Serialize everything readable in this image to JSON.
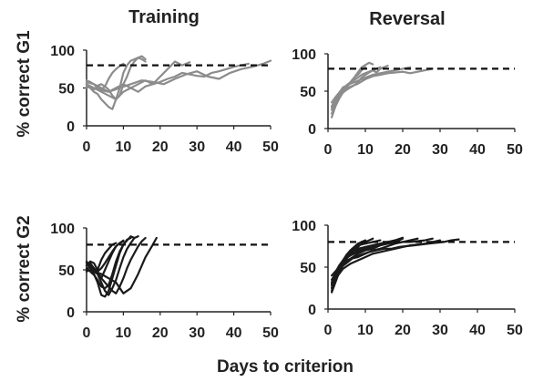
{
  "figure": {
    "column_titles": [
      "Training",
      "Reversal"
    ],
    "row_ylabels": [
      "% correct G1",
      "% correct G2"
    ],
    "shared_xlabel": "Days to criterion"
  },
  "chart_data": [
    {
      "id": "g1-training",
      "type": "line",
      "title": "Training",
      "ylabel": "% correct G1",
      "xlim": [
        0,
        50
      ],
      "ylim": [
        0,
        100
      ],
      "xticks": [
        0,
        10,
        20,
        30,
        40,
        50
      ],
      "yticks": [
        0,
        50,
        100
      ],
      "criterion": 80,
      "color": "#8c8c8c",
      "series": [
        {
          "x": [
            0,
            1,
            2,
            3,
            4,
            5,
            6,
            7,
            8,
            9,
            10
          ],
          "y": [
            60,
            58,
            55,
            50,
            48,
            52,
            62,
            70,
            75,
            79,
            82
          ]
        },
        {
          "x": [
            0,
            1,
            2,
            3,
            4,
            5,
            6,
            7,
            8,
            9,
            10,
            11,
            12,
            13,
            14,
            15,
            16
          ],
          "y": [
            50,
            52,
            48,
            53,
            55,
            52,
            48,
            40,
            35,
            50,
            70,
            80,
            86,
            88,
            90,
            88,
            85
          ]
        },
        {
          "x": [
            0,
            1,
            2,
            3,
            4,
            5,
            6,
            7,
            8,
            9,
            10,
            11,
            12,
            13,
            14,
            15,
            16
          ],
          "y": [
            55,
            50,
            45,
            42,
            35,
            30,
            25,
            22,
            35,
            40,
            55,
            65,
            78,
            85,
            90,
            92,
            88
          ]
        },
        {
          "x": [
            0,
            2,
            4,
            6,
            8,
            10,
            12,
            14,
            16,
            18,
            20,
            22,
            24,
            26,
            28
          ],
          "y": [
            58,
            55,
            50,
            45,
            50,
            55,
            50,
            45,
            52,
            55,
            65,
            75,
            85,
            80,
            84
          ]
        },
        {
          "x": [
            0,
            3,
            6,
            9,
            12,
            15,
            18,
            21,
            24,
            27,
            30,
            33,
            36,
            39,
            42,
            45,
            48,
            50
          ],
          "y": [
            52,
            48,
            45,
            50,
            55,
            60,
            58,
            55,
            62,
            68,
            72,
            65,
            62,
            70,
            75,
            78,
            82,
            86
          ]
        },
        {
          "x": [
            0,
            2,
            4,
            6,
            8,
            10,
            12,
            14,
            16,
            18,
            20,
            22,
            24,
            26,
            28,
            30,
            32,
            34,
            36,
            38,
            40,
            42,
            44
          ],
          "y": [
            55,
            50,
            45,
            40,
            35,
            45,
            50,
            55,
            60,
            55,
            58,
            62,
            65,
            70,
            68,
            66,
            65,
            70,
            72,
            75,
            78,
            80,
            82
          ]
        }
      ]
    },
    {
      "id": "g1-reversal",
      "type": "line",
      "title": "Reversal",
      "ylabel": "% correct G1",
      "xlim": [
        0,
        50
      ],
      "ylim": [
        0,
        100
      ],
      "xticks": [
        0,
        10,
        20,
        30,
        40,
        50
      ],
      "yticks": [
        0,
        50,
        100
      ],
      "criterion": 80,
      "color": "#8c8c8c",
      "series": [
        {
          "x": [
            1,
            2,
            3,
            4,
            5,
            6,
            7,
            8,
            9,
            10
          ],
          "y": [
            15,
            30,
            42,
            50,
            56,
            62,
            68,
            72,
            78,
            82
          ]
        },
        {
          "x": [
            1,
            2,
            3,
            4,
            5,
            6,
            7,
            8,
            9,
            10,
            11,
            12
          ],
          "y": [
            25,
            35,
            45,
            50,
            55,
            62,
            68,
            75,
            82,
            85,
            88,
            86
          ]
        },
        {
          "x": [
            1,
            2,
            3,
            4,
            5,
            6,
            7,
            8,
            9,
            10,
            11,
            12,
            13,
            14
          ],
          "y": [
            20,
            30,
            40,
            48,
            52,
            55,
            58,
            62,
            68,
            72,
            75,
            78,
            80,
            82
          ]
        },
        {
          "x": [
            1,
            2,
            3,
            4,
            5,
            6,
            7,
            8,
            9,
            10,
            11,
            12,
            13,
            14,
            15,
            16
          ],
          "y": [
            30,
            38,
            45,
            52,
            58,
            62,
            65,
            68,
            72,
            74,
            76,
            78,
            75,
            80,
            82,
            84
          ]
        },
        {
          "x": [
            1,
            2,
            3,
            4,
            6,
            8,
            10,
            12,
            14,
            16,
            18,
            20,
            22
          ],
          "y": [
            35,
            42,
            48,
            55,
            60,
            64,
            68,
            72,
            74,
            76,
            78,
            80,
            82
          ]
        },
        {
          "x": [
            1,
            2,
            3,
            4,
            6,
            8,
            10,
            12,
            14,
            16,
            18,
            20,
            22,
            24,
            26,
            28
          ],
          "y": [
            28,
            36,
            44,
            50,
            56,
            60,
            66,
            70,
            72,
            74,
            75,
            76,
            74,
            76,
            78,
            80
          ]
        }
      ]
    },
    {
      "id": "g2-training",
      "type": "line",
      "title": "Training",
      "ylabel": "% correct G2",
      "xlim": [
        0,
        50
      ],
      "ylim": [
        0,
        100
      ],
      "xticks": [
        0,
        10,
        20,
        30,
        40,
        50
      ],
      "yticks": [
        0,
        50,
        100
      ],
      "criterion": 80,
      "color": "#1a1a1a",
      "series": [
        {
          "x": [
            0,
            1,
            2,
            3,
            4,
            5,
            6,
            7,
            8
          ],
          "y": [
            55,
            60,
            58,
            50,
            62,
            70,
            75,
            80,
            82
          ]
        },
        {
          "x": [
            0,
            1,
            2,
            3,
            4,
            5,
            6,
            7,
            8,
            9,
            10
          ],
          "y": [
            50,
            55,
            48,
            45,
            40,
            50,
            60,
            70,
            78,
            82,
            85
          ]
        },
        {
          "x": [
            0,
            1,
            2,
            3,
            4,
            5,
            6,
            7,
            8,
            9,
            10,
            11,
            12
          ],
          "y": [
            58,
            52,
            45,
            35,
            20,
            18,
            25,
            40,
            55,
            70,
            80,
            86,
            88
          ]
        },
        {
          "x": [
            0,
            1,
            2,
            3,
            4,
            5,
            6,
            7,
            8,
            9,
            10,
            11,
            12,
            13
          ],
          "y": [
            52,
            48,
            44,
            38,
            30,
            28,
            32,
            45,
            60,
            72,
            80,
            85,
            90,
            88
          ]
        },
        {
          "x": [
            0,
            1,
            2,
            3,
            4,
            5,
            6,
            7,
            8,
            9,
            10,
            11,
            12,
            13,
            14
          ],
          "y": [
            48,
            50,
            52,
            45,
            35,
            25,
            20,
            28,
            38,
            52,
            65,
            75,
            82,
            88,
            90
          ]
        },
        {
          "x": [
            0,
            1,
            2,
            3,
            4,
            5,
            6,
            7,
            8,
            9,
            10,
            11,
            12,
            13,
            14,
            15,
            16
          ],
          "y": [
            55,
            58,
            52,
            48,
            40,
            35,
            30,
            25,
            22,
            30,
            40,
            52,
            62,
            70,
            78,
            84,
            88
          ]
        },
        {
          "x": [
            0,
            2,
            4,
            6,
            8,
            10,
            12,
            14,
            16,
            18,
            19
          ],
          "y": [
            50,
            48,
            45,
            40,
            35,
            22,
            28,
            45,
            65,
            80,
            88
          ]
        },
        {
          "x": [
            0,
            1,
            2,
            3,
            4,
            5,
            6,
            7,
            8,
            9,
            10
          ],
          "y": [
            60,
            55,
            50,
            48,
            52,
            58,
            65,
            72,
            78,
            82,
            84
          ]
        }
      ]
    },
    {
      "id": "g2-reversal",
      "type": "line",
      "title": "Reversal",
      "ylabel": "% correct G2",
      "xlim": [
        0,
        50
      ],
      "ylim": [
        0,
        100
      ],
      "xticks": [
        0,
        10,
        20,
        30,
        40,
        50
      ],
      "yticks": [
        0,
        50,
        100
      ],
      "criterion": 80,
      "color": "#1a1a1a",
      "series": [
        {
          "x": [
            1,
            2,
            3,
            4,
            5,
            6,
            7,
            8,
            9,
            10
          ],
          "y": [
            22,
            35,
            48,
            58,
            65,
            70,
            74,
            78,
            80,
            82
          ]
        },
        {
          "x": [
            1,
            2,
            3,
            4,
            5,
            6,
            7,
            8,
            9,
            10,
            11,
            12
          ],
          "y": [
            30,
            40,
            50,
            55,
            60,
            66,
            70,
            74,
            78,
            80,
            82,
            84
          ]
        },
        {
          "x": [
            1,
            2,
            3,
            4,
            5,
            6,
            7,
            8,
            10,
            12,
            14
          ],
          "y": [
            25,
            38,
            46,
            55,
            62,
            68,
            72,
            76,
            78,
            80,
            82
          ]
        },
        {
          "x": [
            1,
            2,
            3,
            4,
            5,
            6,
            7,
            8,
            10,
            12,
            14,
            16,
            18
          ],
          "y": [
            35,
            42,
            50,
            56,
            62,
            66,
            70,
            72,
            74,
            76,
            78,
            80,
            82
          ]
        },
        {
          "x": [
            1,
            2,
            3,
            4,
            6,
            8,
            10,
            12,
            14,
            16,
            18,
            20
          ],
          "y": [
            20,
            32,
            44,
            52,
            60,
            66,
            70,
            72,
            76,
            78,
            80,
            84
          ]
        },
        {
          "x": [
            1,
            2,
            3,
            4,
            6,
            8,
            10,
            12,
            14,
            16,
            18,
            20,
            22,
            24
          ],
          "y": [
            40,
            45,
            50,
            55,
            60,
            62,
            66,
            70,
            72,
            75,
            78,
            80,
            82,
            84
          ]
        },
        {
          "x": [
            1,
            2,
            3,
            4,
            6,
            8,
            10,
            12,
            14,
            16,
            18,
            20,
            22,
            24,
            26,
            28,
            30
          ],
          "y": [
            28,
            36,
            42,
            48,
            54,
            58,
            62,
            66,
            68,
            70,
            72,
            74,
            76,
            77,
            78,
            80,
            82
          ]
        },
        {
          "x": [
            1,
            2,
            3,
            5,
            7,
            9,
            11,
            13,
            15,
            17,
            19,
            21,
            23,
            25,
            27,
            29,
            31,
            33,
            35
          ],
          "y": [
            30,
            40,
            48,
            55,
            62,
            65,
            68,
            70,
            72,
            72,
            74,
            75,
            76,
            77,
            78,
            79,
            80,
            82,
            83
          ]
        },
        {
          "x": [
            1,
            2,
            3,
            4,
            6,
            8,
            10,
            12,
            14,
            16,
            18,
            20,
            22,
            24,
            26,
            28
          ],
          "y": [
            25,
            38,
            50,
            58,
            64,
            68,
            72,
            74,
            76,
            78,
            79,
            80,
            80,
            81,
            82,
            84
          ]
        },
        {
          "x": [
            1,
            2,
            3,
            4,
            6,
            8,
            10,
            12,
            14,
            16,
            18,
            20
          ],
          "y": [
            32,
            44,
            52,
            58,
            64,
            70,
            74,
            76,
            78,
            80,
            82,
            85
          ]
        }
      ]
    }
  ]
}
